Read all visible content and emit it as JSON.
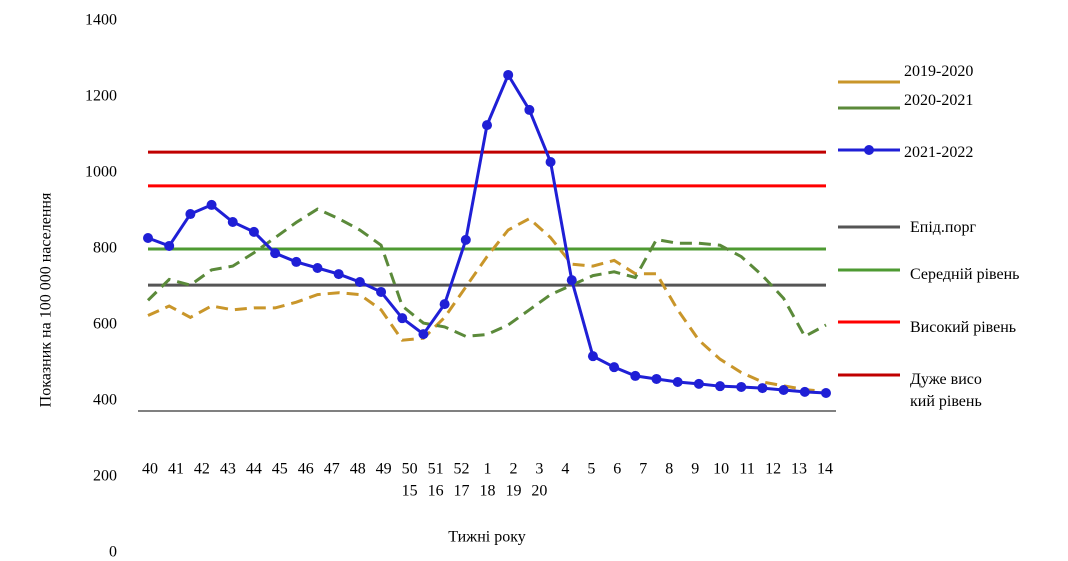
{
  "chart_data": {
    "type": "line",
    "y_axis_label": "Показник на 100 000 населення",
    "x_axis_label": "Тижні року",
    "x_tick_labels": [
      "40",
      "41",
      "42",
      "43",
      "44",
      "45",
      "46",
      "47",
      "48",
      "49",
      "50",
      "51",
      "52",
      "1",
      "2",
      "3",
      "4",
      "5",
      "6",
      "7",
      "8",
      "9",
      "10",
      "11",
      "12",
      "13",
      "14"
    ],
    "x_tick_labels_2": [
      null,
      null,
      null,
      null,
      null,
      null,
      null,
      null,
      null,
      null,
      "15",
      "16",
      "17",
      "18",
      "19",
      "20",
      null,
      null,
      null,
      null,
      null,
      null,
      null,
      null,
      null,
      null,
      null
    ],
    "ylim": [
      0,
      1400
    ],
    "yticks": [
      0,
      200,
      400,
      600,
      800,
      1000,
      1200,
      1400
    ],
    "series": [
      {
        "name": "2019-2020",
        "color": "#c9962a",
        "dashed": true,
        "values": [
          625,
          650,
          620,
          650,
          640,
          645,
          645,
          660,
          680,
          685,
          680,
          640,
          560,
          565,
          620,
          700,
          780,
          850,
          880,
          830,
          760,
          755,
          770,
          735,
          735,
          640,
          560,
          510,
          475,
          450,
          440,
          430,
          425
        ]
      },
      {
        "name": "2020-2021",
        "color": "#5b8a3a",
        "dashed": true,
        "values": [
          665,
          720,
          705,
          745,
          755,
          790,
          830,
          870,
          905,
          880,
          850,
          810,
          650,
          605,
          595,
          570,
          575,
          600,
          640,
          680,
          705,
          730,
          740,
          725,
          825,
          815,
          815,
          810,
          780,
          730,
          670,
          570,
          600
        ]
      },
      {
        "name": "2021-2022",
        "color": "#1f1fd6",
        "dashed": false,
        "marker": "circle",
        "values": [
          829,
          808,
          892,
          916,
          871,
          845,
          789,
          766,
          750,
          734,
          713,
          687,
          618,
          576,
          655,
          824,
          1126,
          1258,
          1166,
          1029,
          718,
          518,
          489,
          466,
          458,
          450,
          445,
          439,
          437,
          434,
          429,
          424,
          421
        ]
      }
    ],
    "levels": [
      {
        "name": "Епід.порг",
        "color": "#555555",
        "value": 705
      },
      {
        "name": "Середній рівень",
        "color": "#4e9a32",
        "value": 800
      },
      {
        "name": "Високий рівень",
        "color": "#ff0000",
        "value": 966
      },
      {
        "name": "Дуже високий рівень",
        "color": "#c00000",
        "value": 1055
      }
    ]
  }
}
